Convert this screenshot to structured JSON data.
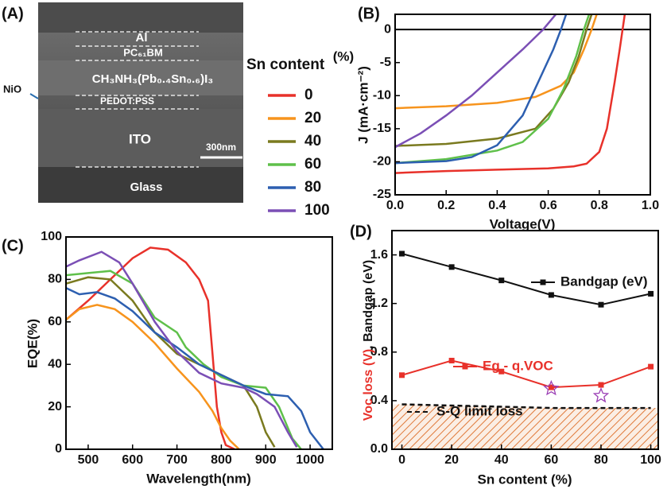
{
  "sem_image": {
    "label": "(A)",
    "layers": [
      "Al",
      "PC₆₁BM",
      "CH₃NH₃(Pb₀.₄Sn₀.₆)I₃",
      "PEDOT:PSS",
      "ITO",
      "Glass"
    ],
    "side_label": "NiO",
    "scale_bar": "300nm"
  },
  "legend": {
    "title": "Sn content"
  },
  "chart_data": [
    {
      "type": "line",
      "label": "(B)",
      "xlabel": "Voltage(V)",
      "ylabel": "J (mA·cm⁻²)",
      "annotation": "(%)",
      "reference_line": 0,
      "xlim": [
        0,
        1
      ],
      "xticks": [
        {
          "value": 0,
          "label": "0.0"
        },
        {
          "value": 0.2,
          "label": "0.2"
        },
        {
          "value": 0.4,
          "label": "0.4"
        },
        {
          "value": 0.6,
          "label": "0.6"
        },
        {
          "value": 0.8,
          "label": "0.8"
        },
        {
          "value": 1,
          "label": "1.0"
        }
      ],
      "ylim": [
        -25,
        2.3
      ],
      "yticks": [
        -25,
        -20,
        -15,
        -10,
        -5,
        0
      ],
      "series": [
        {
          "name": "0",
          "color": "#e8312a",
          "x": [
            0,
            0.2,
            0.4,
            0.6,
            0.7,
            0.75,
            0.8,
            0.83,
            0.86,
            0.88,
            0.9
          ],
          "values": [
            -21.7,
            -21.4,
            -21.2,
            -21.0,
            -20.7,
            -20.3,
            -18.5,
            -15,
            -8,
            -3,
            2.3
          ]
        },
        {
          "name": "20",
          "color": "#f7941d",
          "x": [
            0,
            0.2,
            0.4,
            0.55,
            0.65,
            0.7,
            0.74,
            0.77,
            0.79
          ],
          "values": [
            -11.9,
            -11.6,
            -11.1,
            -10.2,
            -8.5,
            -6.5,
            -3,
            0,
            2.3
          ]
        },
        {
          "name": "40",
          "color": "#7a7a1f",
          "x": [
            0,
            0.2,
            0.4,
            0.55,
            0.62,
            0.68,
            0.72,
            0.75,
            0.77
          ],
          "values": [
            -17.6,
            -17.3,
            -16.5,
            -15,
            -12,
            -8,
            -4,
            0,
            2.3
          ]
        },
        {
          "name": "60",
          "color": "#5fc04a",
          "x": [
            0,
            0.2,
            0.4,
            0.5,
            0.6,
            0.66,
            0.71,
            0.74,
            0.76
          ],
          "values": [
            -20.2,
            -19.6,
            -18.3,
            -17,
            -13.5,
            -9,
            -4,
            0,
            2.3
          ]
        },
        {
          "name": "80",
          "color": "#2d5fb0",
          "x": [
            0,
            0.2,
            0.3,
            0.4,
            0.5,
            0.56,
            0.62,
            0.65,
            0.67
          ],
          "values": [
            -20.2,
            -19.9,
            -19.3,
            -17.5,
            -13,
            -8,
            -3,
            0,
            2.3
          ]
        },
        {
          "name": "100",
          "color": "#7b4fb5",
          "x": [
            0,
            0.1,
            0.2,
            0.3,
            0.4,
            0.5,
            0.58,
            0.63
          ],
          "values": [
            -17.8,
            -15.7,
            -13,
            -10,
            -6.5,
            -3,
            0,
            2.3
          ]
        }
      ]
    },
    {
      "type": "line",
      "label": "(C)",
      "xlabel": "Wavelength(nm)",
      "ylabel": "EQE(%)",
      "xlim": [
        450,
        1050
      ],
      "xticks": [
        500,
        600,
        700,
        800,
        900,
        1000
      ],
      "ylim": [
        0,
        100
      ],
      "yticks": [
        0,
        20,
        40,
        60,
        80,
        100
      ],
      "series": [
        {
          "color": "#e8312a",
          "x": [
            450,
            500,
            550,
            600,
            640,
            680,
            720,
            750,
            770,
            780,
            790,
            800,
            810,
            830
          ],
          "values": [
            61,
            70,
            80,
            90,
            95,
            94,
            88,
            80,
            70,
            45,
            20,
            8,
            2,
            0
          ]
        },
        {
          "color": "#f7941d",
          "x": [
            450,
            480,
            520,
            560,
            600,
            650,
            700,
            750,
            780,
            800,
            820,
            840
          ],
          "values": [
            61,
            66,
            68,
            66,
            60,
            50,
            38,
            27,
            18,
            10,
            4,
            0
          ]
        },
        {
          "color": "#7a7a1f",
          "x": [
            450,
            500,
            550,
            600,
            650,
            700,
            750,
            800,
            850,
            880,
            900,
            920
          ],
          "values": [
            78,
            81,
            80,
            70,
            55,
            45,
            40,
            35,
            30,
            20,
            8,
            1
          ]
        },
        {
          "color": "#5fc04a",
          "x": [
            450,
            500,
            550,
            600,
            650,
            700,
            720,
            760,
            800,
            850,
            900,
            930,
            960,
            980
          ],
          "values": [
            82,
            83,
            84,
            78,
            62,
            55,
            48,
            40,
            34,
            30,
            29,
            20,
            5,
            0
          ]
        },
        {
          "color": "#2d5fb0",
          "x": [
            450,
            480,
            520,
            560,
            600,
            650,
            700,
            750,
            800,
            850,
            900,
            950,
            980,
            1000,
            1030
          ],
          "values": [
            76,
            73,
            74,
            71,
            65,
            55,
            48,
            40,
            35,
            30,
            26,
            25,
            18,
            8,
            0
          ]
        },
        {
          "color": "#7b4fb5",
          "x": [
            450,
            480,
            530,
            570,
            600,
            650,
            700,
            750,
            800,
            850,
            880,
            920,
            950,
            970
          ],
          "values": [
            86,
            89,
            93,
            88,
            78,
            60,
            46,
            36,
            31,
            29,
            26,
            20,
            8,
            1
          ]
        }
      ]
    },
    {
      "type": "line",
      "label": "(D)",
      "xlabel": "Sn content (%)",
      "ylabel": [
        "Voc loss (V)",
        ", Bandgap (eV)"
      ],
      "ylabel_colors": [
        "#e8312a",
        "#111111"
      ],
      "xlim": [
        -4,
        103
      ],
      "xticks": [
        0,
        20,
        40,
        60,
        80,
        100
      ],
      "ylim": [
        0,
        1.8
      ],
      "yticks": [
        {
          "value": 0,
          "label": "0.0"
        },
        {
          "value": 0.4,
          "label": "0.4"
        },
        {
          "value": 0.8,
          "label": "0.8"
        },
        {
          "value": 1.2,
          "label": "1.2"
        },
        {
          "value": 1.6,
          "label": "1.6"
        }
      ],
      "series": [
        {
          "name": "Bandgap (eV)",
          "color": "#111111",
          "marker": "square",
          "x": [
            0,
            20,
            40,
            60,
            80,
            100
          ],
          "values": [
            1.61,
            1.5,
            1.39,
            1.27,
            1.19,
            1.28
          ]
        },
        {
          "name": "Eg - q.VOC",
          "color": "#e8312a",
          "marker": "square",
          "x": [
            0,
            20,
            40,
            60,
            80,
            100
          ],
          "values": [
            0.61,
            0.73,
            0.64,
            0.51,
            0.53,
            0.68
          ]
        },
        {
          "name": "S-Q limit loss",
          "color": "#111111",
          "dash": true,
          "fill_below": "#e07a3a",
          "x": [
            0,
            20,
            40,
            60,
            80,
            100
          ],
          "values": [
            0.37,
            0.36,
            0.35,
            0.34,
            0.34,
            0.34
          ]
        },
        {
          "color": "#9b3fb5",
          "marker": "star",
          "no_line": true,
          "x": [
            60,
            80
          ],
          "values": [
            0.5,
            0.44
          ]
        }
      ]
    }
  ]
}
